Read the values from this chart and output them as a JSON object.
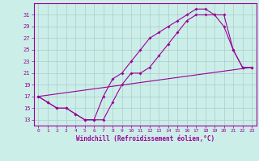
{
  "xlabel": "Windchill (Refroidissement éolien,°C)",
  "bg_color": "#cceee8",
  "grid_color": "#aacccc",
  "line_color": "#990099",
  "line1_x": [
    0,
    1,
    2,
    3,
    4,
    5,
    6,
    7,
    8,
    9,
    10,
    11,
    12,
    13,
    14,
    15,
    16,
    17,
    18,
    19,
    20,
    21,
    22,
    23
  ],
  "line1_y": [
    17,
    16,
    15,
    15,
    14,
    13,
    13,
    17,
    20,
    21,
    23,
    25,
    27,
    28,
    29,
    30,
    31,
    32,
    32,
    31,
    29,
    25,
    22,
    22
  ],
  "line2_x": [
    0,
    1,
    2,
    3,
    4,
    5,
    6,
    7,
    8,
    9,
    10,
    11,
    12,
    13,
    14,
    15,
    16,
    17,
    18,
    19,
    20,
    21,
    22,
    23
  ],
  "line2_y": [
    17,
    16,
    15,
    15,
    14,
    13,
    13,
    13,
    16,
    19,
    21,
    21,
    22,
    24,
    26,
    28,
    30,
    31,
    31,
    31,
    31,
    25,
    22,
    22
  ],
  "line3_x": [
    0,
    23
  ],
  "line3_y": [
    17,
    22
  ],
  "xlim": [
    -0.5,
    23.5
  ],
  "ylim": [
    12,
    33
  ],
  "yticks": [
    13,
    15,
    17,
    19,
    21,
    23,
    25,
    27,
    29,
    31
  ],
  "xticks": [
    0,
    1,
    2,
    3,
    4,
    5,
    6,
    7,
    8,
    9,
    10,
    11,
    12,
    13,
    14,
    15,
    16,
    17,
    18,
    19,
    20,
    21,
    22,
    23
  ]
}
